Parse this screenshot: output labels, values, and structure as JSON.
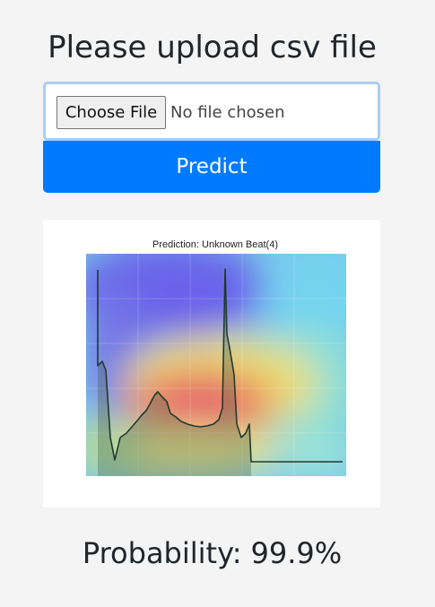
{
  "header": {
    "title": "Please upload csv file"
  },
  "upload": {
    "choose_label": "Choose File",
    "status_text": "No file chosen"
  },
  "actions": {
    "predict_label": "Predict"
  },
  "result": {
    "plot_title": "Prediction: Unknown Beat(4)",
    "probability_label": "Probability:",
    "probability_value": "99.9%"
  },
  "colors": {
    "background": "#f4f4f4",
    "accent": "#007bff",
    "input_focus_border": "#a9cdf5",
    "waveform": "#1f3a2e"
  }
}
